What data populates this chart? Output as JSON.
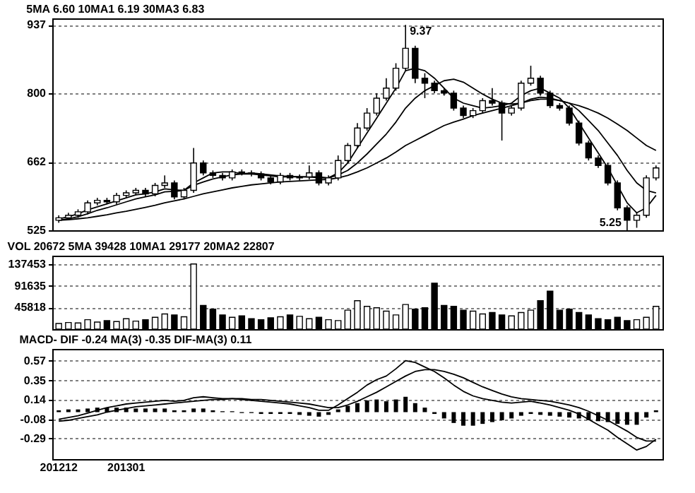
{
  "chart_data": [
    {
      "type": "candlestick",
      "title": "5MA 6.60 10MA1 6.19 30MA3 6.83",
      "tick_labels": "y",
      "grid": "y",
      "categories": [
        null,
        null,
        null,
        null,
        null,
        null,
        null,
        null,
        null,
        null,
        null,
        null,
        null,
        null,
        null,
        null,
        null,
        null,
        null,
        null,
        null,
        null,
        null,
        null,
        null,
        null,
        null,
        null,
        null,
        null,
        null,
        null,
        null,
        null,
        null,
        null,
        null,
        null,
        null,
        null,
        null,
        null,
        null,
        null,
        null,
        null,
        null,
        null,
        null,
        null,
        null,
        null,
        null,
        null,
        null,
        null,
        null,
        null,
        null,
        null,
        null,
        null,
        null
      ],
      "ylim": [
        525,
        950
      ],
      "yticks": [
        937,
        800,
        662,
        525
      ],
      "ohlc": [
        [
          545,
          555,
          540,
          550
        ],
        [
          550,
          560,
          545,
          555
        ],
        [
          555,
          567,
          550,
          562
        ],
        [
          562,
          585,
          557,
          580
        ],
        [
          580,
          590,
          575,
          585
        ],
        [
          585,
          590,
          577,
          582
        ],
        [
          582,
          600,
          577,
          595
        ],
        [
          595,
          605,
          590,
          600
        ],
        [
          600,
          610,
          595,
          605
        ],
        [
          605,
          610,
          593,
          598
        ],
        [
          598,
          620,
          593,
          615
        ],
        [
          615,
          635,
          610,
          620
        ],
        [
          620,
          625,
          587,
          592
        ],
        [
          592,
          610,
          587,
          605
        ],
        [
          605,
          690,
          600,
          660
        ],
        [
          660,
          665,
          635,
          640
        ],
        [
          640,
          645,
          630,
          635
        ],
        [
          635,
          640,
          625,
          630
        ],
        [
          630,
          647,
          625,
          642
        ],
        [
          642,
          647,
          635,
          640
        ],
        [
          640,
          645,
          633,
          638
        ],
        [
          638,
          643,
          625,
          630
        ],
        [
          630,
          635,
          617,
          622
        ],
        [
          622,
          640,
          617,
          635
        ],
        [
          635,
          640,
          625,
          630
        ],
        [
          630,
          637,
          625,
          632
        ],
        [
          632,
          655,
          627,
          640
        ],
        [
          640,
          645,
          615,
          620
        ],
        [
          620,
          635,
          615,
          630
        ],
        [
          630,
          675,
          625,
          665
        ],
        [
          665,
          700,
          660,
          695
        ],
        [
          695,
          740,
          690,
          730
        ],
        [
          730,
          770,
          725,
          760
        ],
        [
          760,
          800,
          755,
          790
        ],
        [
          790,
          830,
          785,
          810
        ],
        [
          810,
          860,
          805,
          850
        ],
        [
          850,
          937,
          845,
          890
        ],
        [
          890,
          895,
          820,
          830
        ],
        [
          830,
          840,
          790,
          820
        ],
        [
          820,
          825,
          800,
          805
        ],
        [
          805,
          810,
          795,
          800
        ],
        [
          800,
          805,
          765,
          770
        ],
        [
          770,
          775,
          750,
          755
        ],
        [
          755,
          770,
          750,
          765
        ],
        [
          765,
          790,
          760,
          785
        ],
        [
          785,
          810,
          775,
          780
        ],
        [
          780,
          785,
          705,
          760
        ],
        [
          760,
          775,
          755,
          770
        ],
        [
          770,
          825,
          765,
          820
        ],
        [
          820,
          855,
          815,
          830
        ],
        [
          830,
          835,
          795,
          800
        ],
        [
          800,
          805,
          770,
          775
        ],
        [
          775,
          780,
          765,
          770
        ],
        [
          770,
          775,
          735,
          740
        ],
        [
          740,
          745,
          695,
          700
        ],
        [
          700,
          705,
          665,
          670
        ],
        [
          670,
          675,
          650,
          655
        ],
        [
          655,
          660,
          615,
          620
        ],
        [
          620,
          625,
          565,
          570
        ],
        [
          570,
          575,
          525,
          545
        ],
        [
          545,
          560,
          530,
          555
        ],
        [
          555,
          635,
          550,
          630
        ],
        [
          630,
          655,
          625,
          650
        ]
      ],
      "colors": [
        "#ffffff",
        "#ffffff",
        "#ffffff",
        "#ffffff",
        "#ffffff",
        "#000000",
        "#ffffff",
        "#ffffff",
        "#ffffff",
        "#000000",
        "#ffffff",
        "#ffffff",
        "#000000",
        "#ffffff",
        "#ffffff",
        "#000000",
        "#000000",
        "#000000",
        "#ffffff",
        "#000000",
        "#000000",
        "#000000",
        "#000000",
        "#ffffff",
        "#000000",
        "#ffffff",
        "#ffffff",
        "#000000",
        "#ffffff",
        "#ffffff",
        "#ffffff",
        "#ffffff",
        "#ffffff",
        "#ffffff",
        "#ffffff",
        "#ffffff",
        "#ffffff",
        "#000000",
        "#000000",
        "#000000",
        "#000000",
        "#000000",
        "#000000",
        "#ffffff",
        "#ffffff",
        "#000000",
        "#000000",
        "#ffffff",
        "#ffffff",
        "#ffffff",
        "#000000",
        "#000000",
        "#000000",
        "#000000",
        "#000000",
        "#000000",
        "#000000",
        "#000000",
        "#000000",
        "#000000",
        "#ffffff",
        "#ffffff",
        "#ffffff"
      ],
      "series": [
        {
          "type": "line",
          "color": "#000000",
          "values": [
            548,
            552,
            558,
            566,
            572,
            578,
            584,
            590,
            596,
            598,
            602,
            608,
            606,
            605,
            620,
            630,
            640,
            642,
            642,
            638,
            638,
            636,
            634,
            632,
            632,
            632,
            632,
            630,
            630,
            640,
            660,
            690,
            720,
            750,
            780,
            810,
            845,
            850,
            845,
            830,
            810,
            790,
            780,
            775,
            770,
            772,
            775,
            780,
            795,
            805,
            810,
            800,
            790,
            770,
            740,
            710,
            680,
            650,
            615,
            580,
            560,
            570,
            595
          ]
        },
        {
          "type": "line",
          "color": "#000000",
          "values": [
            545,
            548,
            552,
            558,
            565,
            570,
            576,
            582,
            588,
            592,
            596,
            602,
            603,
            605,
            615,
            622,
            628,
            632,
            636,
            638,
            640,
            638,
            636,
            634,
            633,
            632,
            632,
            632,
            630,
            636,
            645,
            660,
            678,
            698,
            718,
            742,
            770,
            790,
            805,
            815,
            825,
            828,
            822,
            810,
            798,
            788,
            780,
            778,
            780,
            788,
            792,
            790,
            785,
            780,
            765,
            745,
            725,
            700,
            675,
            645,
            620,
            605,
            600
          ]
        },
        {
          "type": "line",
          "color": "#000000",
          "values": [
            545,
            546,
            548,
            550,
            553,
            556,
            560,
            563,
            567,
            571,
            575,
            580,
            584,
            588,
            593,
            598,
            602,
            606,
            610,
            613,
            616,
            618,
            620,
            622,
            623,
            624,
            625,
            626,
            627,
            630,
            635,
            642,
            650,
            660,
            670,
            682,
            695,
            705,
            715,
            725,
            735,
            742,
            748,
            755,
            760,
            765,
            770,
            775,
            780,
            785,
            788,
            788,
            785,
            780,
            775,
            768,
            760,
            750,
            738,
            725,
            710,
            695,
            685
          ]
        }
      ],
      "annotations": [
        "9.37",
        "5.25"
      ]
    },
    {
      "type": "bar",
      "title": "VOL 20672 5MA 39428 10MA1 29177 20MA2 22807",
      "tick_labels": "y",
      "grid": "y",
      "categories": [
        null,
        null,
        null,
        null,
        null,
        null,
        null,
        null,
        null,
        null,
        null,
        null,
        null,
        null,
        null,
        null,
        null,
        null,
        null,
        null,
        null,
        null,
        null,
        null,
        null,
        null,
        null,
        null,
        null,
        null,
        null,
        null,
        null,
        null,
        null,
        null,
        null,
        null,
        null,
        null,
        null,
        null,
        null,
        null,
        null,
        null,
        null,
        null,
        null,
        null,
        null,
        null,
        null,
        null,
        null,
        null,
        null,
        null,
        null,
        null,
        null,
        null,
        null
      ],
      "ylim": [
        0,
        155000
      ],
      "yticks": [
        45818,
        91635,
        137453
      ],
      "values": [
        12000,
        14000,
        13000,
        20000,
        15000,
        18000,
        16000,
        22000,
        17000,
        20000,
        25000,
        32000,
        30000,
        26000,
        137453,
        50000,
        42000,
        30000,
        25000,
        28000,
        22000,
        20000,
        24000,
        26000,
        30000,
        27000,
        22000,
        25000,
        20000,
        18000,
        40000,
        60000,
        48000,
        45000,
        38000,
        30000,
        52000,
        42000,
        45000,
        97000,
        50000,
        48000,
        40000,
        38000,
        32000,
        35000,
        30000,
        28000,
        35000,
        40000,
        60000,
        80000,
        40000,
        42000,
        35000,
        30000,
        22000,
        20000,
        25000,
        18000,
        20000,
        25000,
        48000
      ],
      "colors": [
        "#ffffff",
        "#ffffff",
        "#ffffff",
        "#ffffff",
        "#ffffff",
        "#000000",
        "#ffffff",
        "#ffffff",
        "#ffffff",
        "#000000",
        "#ffffff",
        "#ffffff",
        "#000000",
        "#ffffff",
        "#ffffff",
        "#000000",
        "#000000",
        "#000000",
        "#ffffff",
        "#000000",
        "#000000",
        "#000000",
        "#000000",
        "#ffffff",
        "#000000",
        "#ffffff",
        "#ffffff",
        "#000000",
        "#ffffff",
        "#ffffff",
        "#ffffff",
        "#ffffff",
        "#ffffff",
        "#ffffff",
        "#ffffff",
        "#ffffff",
        "#ffffff",
        "#000000",
        "#000000",
        "#000000",
        "#000000",
        "#000000",
        "#000000",
        "#ffffff",
        "#ffffff",
        "#000000",
        "#000000",
        "#ffffff",
        "#ffffff",
        "#ffffff",
        "#000000",
        "#000000",
        "#000000",
        "#000000",
        "#000000",
        "#000000",
        "#000000",
        "#000000",
        "#000000",
        "#000000",
        "#ffffff",
        "#ffffff",
        "#ffffff"
      ]
    },
    {
      "type": "line",
      "title": "MACD- DIF -0.24 MA(3) -0.35 DIF-MA(3) 0.11",
      "grid": "y",
      "categories": [
        "201212",
        null,
        null,
        null,
        null,
        null,
        null,
        "201301",
        null,
        null,
        null,
        null,
        null,
        null,
        null,
        null,
        null,
        null,
        null,
        null,
        null,
        null,
        null,
        null,
        null,
        null,
        null,
        null,
        null,
        null,
        null,
        null,
        null,
        null,
        null,
        null,
        null,
        null,
        null,
        null,
        null,
        null,
        null,
        null,
        null,
        null,
        null,
        null,
        null,
        null,
        null,
        null,
        null,
        null,
        null,
        null,
        null,
        null,
        null,
        null,
        null,
        null,
        null
      ],
      "ylim": [
        -0.52,
        0.7
      ],
      "yticks": [
        0.57,
        0.35,
        0.14,
        -0.08,
        -0.29
      ],
      "series": [
        {
          "type": "line",
          "color": "#000000",
          "values": [
            -0.08,
            -0.06,
            -0.04,
            -0.01,
            0.02,
            0.05,
            0.07,
            0.09,
            0.1,
            0.11,
            0.12,
            0.13,
            0.12,
            0.13,
            0.16,
            0.17,
            0.16,
            0.15,
            0.15,
            0.14,
            0.13,
            0.12,
            0.11,
            0.1,
            0.09,
            0.07,
            0.05,
            0.02,
            0.02,
            0.08,
            0.15,
            0.22,
            0.3,
            0.36,
            0.4,
            0.48,
            0.57,
            0.55,
            0.5,
            0.45,
            0.38,
            0.3,
            0.23,
            0.18,
            0.15,
            0.13,
            0.11,
            0.1,
            0.11,
            0.12,
            0.1,
            0.08,
            0.05,
            0.02,
            -0.02,
            -0.08,
            -0.14,
            -0.2,
            -0.28,
            -0.35,
            -0.42,
            -0.38,
            -0.3
          ]
        },
        {
          "type": "line",
          "color": "#000000",
          "values": [
            -0.1,
            -0.09,
            -0.07,
            -0.05,
            -0.03,
            0.0,
            0.02,
            0.04,
            0.06,
            0.07,
            0.08,
            0.09,
            0.1,
            0.11,
            0.12,
            0.13,
            0.14,
            0.14,
            0.15,
            0.15,
            0.14,
            0.14,
            0.13,
            0.12,
            0.11,
            0.1,
            0.09,
            0.07,
            0.05,
            0.05,
            0.08,
            0.12,
            0.17,
            0.22,
            0.28,
            0.34,
            0.4,
            0.45,
            0.47,
            0.47,
            0.45,
            0.42,
            0.38,
            0.33,
            0.28,
            0.24,
            0.2,
            0.17,
            0.15,
            0.14,
            0.13,
            0.12,
            0.1,
            0.08,
            0.05,
            0.01,
            -0.04,
            -0.09,
            -0.15,
            -0.21,
            -0.28,
            -0.32,
            -0.32
          ]
        },
        {
          "type": "bar",
          "color": "#000000",
          "values": [
            0.02,
            0.03,
            0.03,
            0.04,
            0.05,
            0.05,
            0.05,
            0.05,
            0.04,
            0.04,
            0.04,
            0.04,
            0.02,
            0.02,
            0.04,
            0.04,
            0.02,
            0.01,
            0.01,
            -0.01,
            -0.01,
            -0.02,
            -0.02,
            -0.02,
            -0.02,
            -0.03,
            -0.04,
            -0.05,
            -0.03,
            0.03,
            0.07,
            0.1,
            0.13,
            0.14,
            0.12,
            0.14,
            0.17,
            0.1,
            0.05,
            -0.02,
            -0.07,
            -0.12,
            -0.15,
            -0.15,
            -0.13,
            -0.11,
            -0.09,
            -0.07,
            -0.04,
            -0.02,
            -0.03,
            -0.04,
            -0.05,
            -0.06,
            -0.07,
            -0.09,
            -0.1,
            -0.11,
            -0.13,
            -0.14,
            -0.14,
            -0.06,
            0.02
          ]
        }
      ]
    }
  ]
}
